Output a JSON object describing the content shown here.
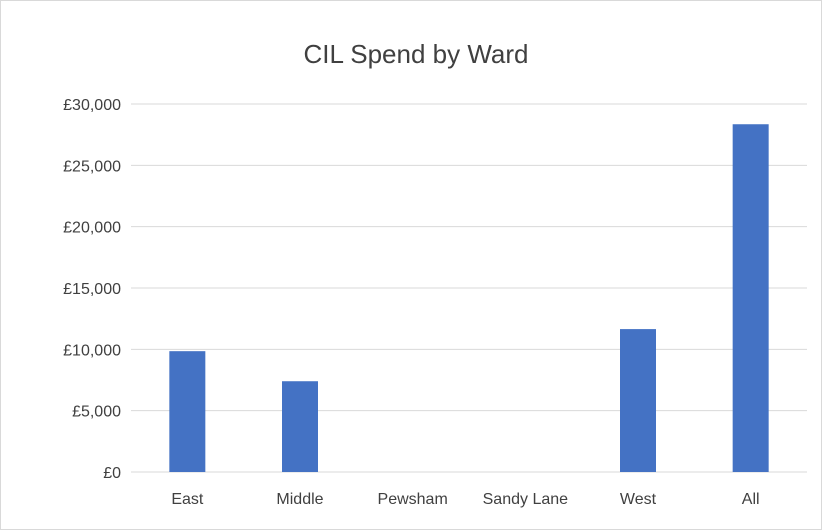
{
  "chart_data": {
    "type": "bar",
    "title": "CIL Spend by Ward",
    "xlabel": "",
    "ylabel": "",
    "categories": [
      "East",
      "Middle",
      "Pewsham",
      "Sandy Lane",
      "West",
      "All"
    ],
    "values": [
      9850,
      7400,
      0,
      0,
      11650,
      28350
    ],
    "ylim": [
      0,
      30000
    ],
    "y_ticks": [
      0,
      5000,
      10000,
      15000,
      20000,
      25000,
      30000
    ],
    "y_tick_labels": [
      "£0",
      "£5,000",
      "£10,000",
      "£15,000",
      "£20,000",
      "£25,000",
      "£30,000"
    ],
    "grid": true,
    "legend": "none",
    "bar_color": "#4472c4"
  }
}
